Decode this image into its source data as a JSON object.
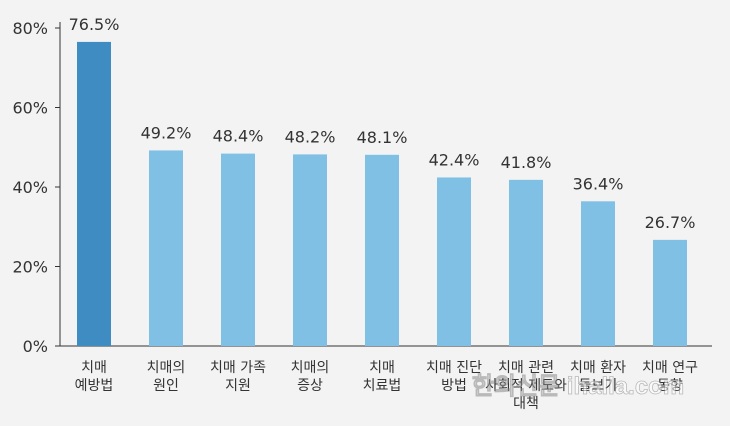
{
  "chart_data": {
    "type": "bar",
    "categories": [
      [
        "치매",
        "예방법"
      ],
      [
        "치매의",
        "원인"
      ],
      [
        "치매 가족",
        "지원"
      ],
      [
        "치매의",
        "증상"
      ],
      [
        "치매",
        "치료법"
      ],
      [
        "치매 진단",
        "방법"
      ],
      [
        "치매 관련",
        "사회적 제도와",
        "대책"
      ],
      [
        "치매 환자",
        "돌보기"
      ],
      [
        "치매 연구",
        "동향"
      ]
    ],
    "values": [
      76.5,
      49.2,
      48.4,
      48.2,
      48.1,
      42.4,
      41.8,
      36.4,
      26.7
    ],
    "value_labels": [
      "76.5%",
      "49.2%",
      "48.4%",
      "48.2%",
      "48.1%",
      "42.4%",
      "41.8%",
      "36.4%",
      "26.7%"
    ],
    "yticks": [
      0,
      20,
      40,
      60,
      80
    ],
    "ytick_labels": [
      "0%",
      "20%",
      "40%",
      "60%",
      "80%"
    ],
    "ylim": [
      0,
      80
    ],
    "grid": false,
    "title": "",
    "xlabel": "",
    "ylabel": "",
    "colors": {
      "highlight": "#3f8cc3",
      "bar": "#7fc0e4",
      "axis": "#333333",
      "text": "#333333"
    },
    "highlight_index": 0
  },
  "watermark": "한의신문 ihalla.com"
}
